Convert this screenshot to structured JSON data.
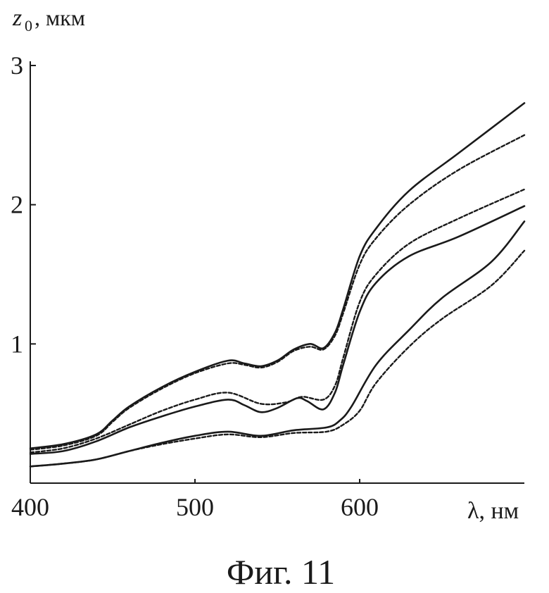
{
  "chart_data": {
    "type": "line",
    "ylabel_main": "z",
    "ylabel_sub": "0",
    "ylabel_unit": ", мкм",
    "xlabel": "λ, нм",
    "caption": "Фиг. 11",
    "xlim": [
      400,
      700
    ],
    "ylim": [
      0,
      3
    ],
    "x_ticks": [
      400,
      500,
      600
    ],
    "y_ticks": [
      1,
      2,
      3
    ],
    "grid": false,
    "series": [
      {
        "style": "solid",
        "points": [
          [
            400,
            0.25
          ],
          [
            420,
            0.28
          ],
          [
            440,
            0.35
          ],
          [
            450,
            0.45
          ],
          [
            460,
            0.55
          ],
          [
            480,
            0.69
          ],
          [
            500,
            0.8
          ],
          [
            520,
            0.88
          ],
          [
            530,
            0.86
          ],
          [
            540,
            0.84
          ],
          [
            550,
            0.88
          ],
          [
            560,
            0.96
          ],
          [
            570,
            1.0
          ],
          [
            578,
            0.97
          ],
          [
            585,
            1.08
          ],
          [
            590,
            1.25
          ],
          [
            600,
            1.63
          ],
          [
            610,
            1.83
          ],
          [
            630,
            2.1
          ],
          [
            660,
            2.37
          ],
          [
            700,
            2.73
          ]
        ]
      },
      {
        "style": "dashed",
        "points": [
          [
            400,
            0.24
          ],
          [
            420,
            0.27
          ],
          [
            440,
            0.34
          ],
          [
            450,
            0.44
          ],
          [
            460,
            0.54
          ],
          [
            480,
            0.68
          ],
          [
            500,
            0.79
          ],
          [
            520,
            0.86
          ],
          [
            530,
            0.85
          ],
          [
            540,
            0.83
          ],
          [
            550,
            0.87
          ],
          [
            560,
            0.95
          ],
          [
            570,
            0.98
          ],
          [
            578,
            0.96
          ],
          [
            585,
            1.06
          ],
          [
            590,
            1.22
          ],
          [
            600,
            1.57
          ],
          [
            610,
            1.76
          ],
          [
            630,
            2.0
          ],
          [
            660,
            2.25
          ],
          [
            700,
            2.5
          ]
        ]
      },
      {
        "style": "dashed",
        "points": [
          [
            400,
            0.22
          ],
          [
            420,
            0.25
          ],
          [
            440,
            0.32
          ],
          [
            460,
            0.42
          ],
          [
            480,
            0.52
          ],
          [
            500,
            0.6
          ],
          [
            520,
            0.65
          ],
          [
            540,
            0.57
          ],
          [
            555,
            0.58
          ],
          [
            565,
            0.62
          ],
          [
            578,
            0.6
          ],
          [
            585,
            0.7
          ],
          [
            590,
            0.9
          ],
          [
            600,
            1.3
          ],
          [
            610,
            1.5
          ],
          [
            630,
            1.72
          ],
          [
            660,
            1.9
          ],
          [
            700,
            2.11
          ]
        ]
      },
      {
        "style": "solid",
        "points": [
          [
            400,
            0.21
          ],
          [
            420,
            0.23
          ],
          [
            440,
            0.3
          ],
          [
            460,
            0.4
          ],
          [
            480,
            0.48
          ],
          [
            500,
            0.55
          ],
          [
            520,
            0.6
          ],
          [
            530,
            0.56
          ],
          [
            540,
            0.51
          ],
          [
            550,
            0.54
          ],
          [
            562,
            0.61
          ],
          [
            568,
            0.59
          ],
          [
            578,
            0.53
          ],
          [
            585,
            0.65
          ],
          [
            590,
            0.85
          ],
          [
            600,
            1.23
          ],
          [
            610,
            1.44
          ],
          [
            630,
            1.63
          ],
          [
            660,
            1.77
          ],
          [
            700,
            1.99
          ]
        ]
      },
      {
        "style": "solid",
        "points": [
          [
            400,
            0.12
          ],
          [
            420,
            0.14
          ],
          [
            440,
            0.17
          ],
          [
            460,
            0.23
          ],
          [
            480,
            0.29
          ],
          [
            500,
            0.34
          ],
          [
            520,
            0.37
          ],
          [
            540,
            0.34
          ],
          [
            560,
            0.38
          ],
          [
            580,
            0.4
          ],
          [
            588,
            0.45
          ],
          [
            595,
            0.55
          ],
          [
            610,
            0.85
          ],
          [
            630,
            1.1
          ],
          [
            650,
            1.33
          ],
          [
            680,
            1.59
          ],
          [
            700,
            1.88
          ]
        ]
      },
      {
        "style": "dashed",
        "points": [
          [
            400,
            0.12
          ],
          [
            420,
            0.14
          ],
          [
            440,
            0.17
          ],
          [
            460,
            0.23
          ],
          [
            480,
            0.28
          ],
          [
            500,
            0.32
          ],
          [
            520,
            0.35
          ],
          [
            540,
            0.33
          ],
          [
            560,
            0.36
          ],
          [
            580,
            0.37
          ],
          [
            590,
            0.42
          ],
          [
            600,
            0.52
          ],
          [
            610,
            0.72
          ],
          [
            630,
            0.98
          ],
          [
            650,
            1.18
          ],
          [
            680,
            1.42
          ],
          [
            700,
            1.67
          ]
        ]
      }
    ]
  }
}
